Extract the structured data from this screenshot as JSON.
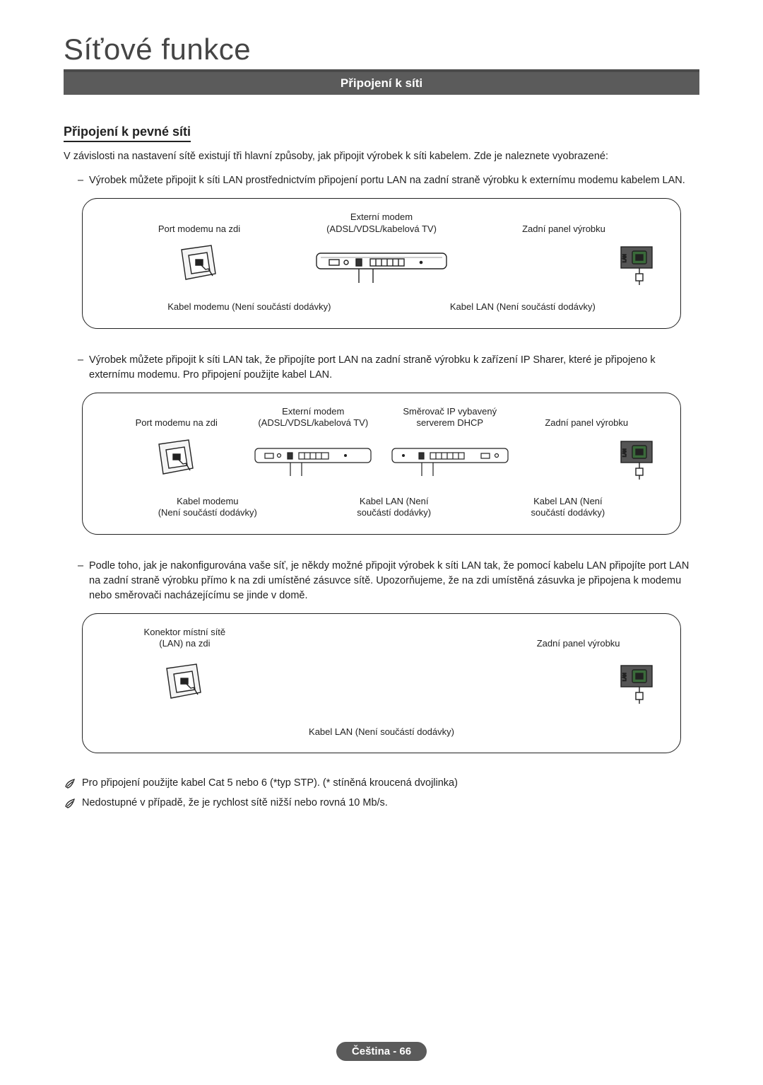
{
  "colors": {
    "text": "#222222",
    "banner_bg": "#5b5b5b",
    "banner_fg": "#ffffff",
    "chapter_underline": "#4a4a4a",
    "diagram_border": "#222222"
  },
  "chapter_title": "Síťové funkce",
  "banner": "Připojení k síti",
  "section_heading": "Připojení k pevné síti",
  "intro": "V závislosti na nastavení sítě existují tři hlavní způsoby, jak připojit výrobek k síti kabelem. Zde je naleznete vyobrazené:",
  "bullets": [
    "Výrobek můžete připojit k síti LAN prostřednictvím připojení portu LAN na zadní straně výrobku k externímu modemu kabelem LAN.",
    "Výrobek můžete připojit k síti LAN tak, že připojíte port LAN na zadní straně výrobku k zařízení IP Sharer, které je připojeno k externímu modemu. Pro připojení použijte kabel LAN.",
    "Podle toho, jak je nakonfigurována vaše síť, je někdy možné připojit výrobek k síti LAN tak, že pomocí kabelu LAN připojíte port LAN na zadní straně výrobku přímo k na zdi umístěné zásuvce sítě. Upozorňujeme, že na zdi umístěná zásuvka je připojena k modemu nebo směrovači nacházejícímu se jinde v domě."
  ],
  "diagram1": {
    "top_labels": [
      "Port modemu na zdi",
      "Externí modem\n(ADSL/VDSL/kabelová TV)",
      "Zadní panel výrobku"
    ],
    "cable_labels": [
      "Kabel modemu (Není součástí dodávky)",
      "Kabel LAN (Není součástí dodávky)"
    ],
    "backpanel_port_label": "LAN"
  },
  "diagram2": {
    "top_labels": [
      "Port modemu na zdi",
      "Externí modem\n(ADSL/VDSL/kabelová TV)",
      "Směrovač IP vybavený\nserverem DHCP",
      "Zadní panel výrobku"
    ],
    "cable_labels": [
      "Kabel modemu\n(Není součástí dodávky)",
      "Kabel LAN (Není\nsoučástí dodávky)",
      "Kabel LAN (Není\nsoučástí dodávky)"
    ],
    "backpanel_port_label": "LAN"
  },
  "diagram3": {
    "top_labels": [
      "Konektor místní sítě\n(LAN) na zdi",
      "Zadní panel výrobku"
    ],
    "cable_label": "Kabel LAN (Není součástí dodávky)",
    "backpanel_port_label": "LAN"
  },
  "notes": [
    "Pro připojení použijte kabel Cat 5 nebo 6 (*typ STP). (* stíněná kroucená dvojlinka)",
    "Nedostupné v případě, že je rychlost sítě nižší nebo rovná 10 Mb/s."
  ],
  "footer": {
    "lang": "Čeština",
    "sep": " - ",
    "page": "66"
  }
}
